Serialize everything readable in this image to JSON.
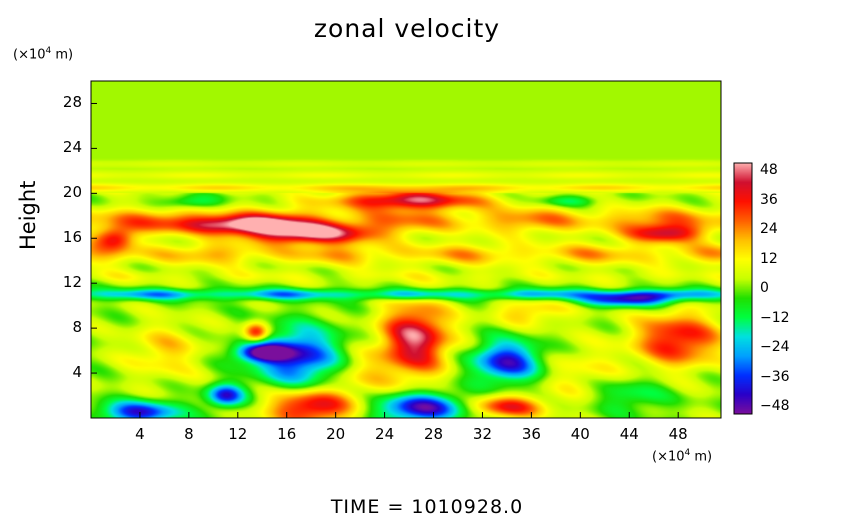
{
  "chart_data": {
    "type": "heatmap",
    "title": "zonal velocity",
    "xlabel": "",
    "x_unit_prefix": "(×10",
    "x_unit_exp": "4",
    "x_unit_suffix": " m)",
    "ylabel": "Height",
    "y_unit_prefix": "(×10",
    "y_unit_exp": "4",
    "y_unit_suffix": " m)",
    "xlim": [
      0,
      51.5
    ],
    "ylim": [
      0,
      30
    ],
    "xticks": [
      "4",
      "8",
      "12",
      "16",
      "20",
      "24",
      "28",
      "32",
      "36",
      "40",
      "44",
      "48"
    ],
    "yticks": [
      "4",
      "8",
      "12",
      "16",
      "20",
      "24",
      "28"
    ],
    "colorbar": {
      "range": [
        -48,
        48
      ],
      "ticks": [
        "48",
        "36",
        "24",
        "12",
        "0",
        "−12",
        "−24",
        "−36",
        "−48"
      ],
      "colors": [
        "#7a0f9c",
        "#2a00c8",
        "#0030ff",
        "#00a0ff",
        "#00e0e0",
        "#00ff40",
        "#20e000",
        "#c8ff00",
        "#ffff00",
        "#ffc000",
        "#ff6000",
        "#ff1000",
        "#d01030",
        "#ffb0b0"
      ]
    },
    "background_value": 2,
    "features": [
      {
        "kind": "band",
        "y": 11.0,
        "x_from": 0,
        "x_to": 51.5,
        "value": -28,
        "thickness": 0.5
      },
      {
        "kind": "band",
        "y": 12.6,
        "x_from": 0,
        "x_to": 51.5,
        "value": 6,
        "thickness": 0.6
      },
      {
        "kind": "band",
        "y": 14.6,
        "x_from": 0,
        "x_to": 51.5,
        "value": 18,
        "thickness": 1.0
      },
      {
        "kind": "band",
        "y": 17.6,
        "x_from": 0,
        "x_to": 51.5,
        "value": 22,
        "thickness": 1.2
      },
      {
        "kind": "band",
        "y": 20.5,
        "x_from": 0,
        "x_to": 51.5,
        "value": 14,
        "thickness": 0.4
      },
      {
        "kind": "band",
        "y": 21.6,
        "x_from": 0,
        "x_to": 51.5,
        "value": 8,
        "thickness": 0.4
      },
      {
        "kind": "band",
        "y": 22.6,
        "x_from": 0,
        "x_to": 51.5,
        "value": 5,
        "thickness": 0.3
      },
      {
        "kind": "blob",
        "x": 26,
        "y": 19.4,
        "rx": 6,
        "ry": 0.8,
        "value": 40
      },
      {
        "kind": "blob",
        "x": 18,
        "y": 16.4,
        "rx": 5,
        "ry": 0.9,
        "value": 44
      },
      {
        "kind": "blob",
        "x": 12,
        "y": 17.2,
        "rx": 5,
        "ry": 0.8,
        "value": 36
      },
      {
        "kind": "blob",
        "x": 2,
        "y": 16.0,
        "rx": 1.6,
        "ry": 1.0,
        "value": 30
      },
      {
        "kind": "blob",
        "x": 47,
        "y": 16.4,
        "rx": 3,
        "ry": 0.8,
        "value": 32
      },
      {
        "kind": "blob",
        "x": 26.5,
        "y": 7.0,
        "rx": 2.8,
        "ry": 3.2,
        "value": 42
      },
      {
        "kind": "blob",
        "x": 48,
        "y": 7.0,
        "rx": 3.5,
        "ry": 2.4,
        "value": 34
      },
      {
        "kind": "blob",
        "x": 17,
        "y": 5.4,
        "rx": 3.5,
        "ry": 2.6,
        "value": -40
      },
      {
        "kind": "blob",
        "x": 14,
        "y": 5.8,
        "rx": 2.2,
        "ry": 0.8,
        "value": -44
      },
      {
        "kind": "blob",
        "x": 34,
        "y": 5.0,
        "rx": 2.8,
        "ry": 1.8,
        "value": -42
      },
      {
        "kind": "blob",
        "x": 11,
        "y": 2.0,
        "rx": 1.5,
        "ry": 1.0,
        "value": -40
      },
      {
        "kind": "blob",
        "x": 27,
        "y": 0.9,
        "rx": 3.5,
        "ry": 1.3,
        "value": -46
      },
      {
        "kind": "blob",
        "x": 4,
        "y": 0.5,
        "rx": 3.2,
        "ry": 1.0,
        "value": -40
      },
      {
        "kind": "blob",
        "x": 18,
        "y": 1.0,
        "rx": 3.5,
        "ry": 1.6,
        "value": 38
      },
      {
        "kind": "blob",
        "x": 34,
        "y": 1.0,
        "rx": 3.0,
        "ry": 1.0,
        "value": 32
      },
      {
        "kind": "blob",
        "x": 13.5,
        "y": 7.6,
        "rx": 1.0,
        "ry": 0.9,
        "value": 36
      },
      {
        "kind": "blob",
        "x": 44,
        "y": 10.5,
        "rx": 4.0,
        "ry": 0.6,
        "value": -36
      },
      {
        "kind": "blob",
        "x": 8,
        "y": 19.2,
        "rx": 2.5,
        "ry": 0.6,
        "value": -16
      },
      {
        "kind": "blob",
        "x": 39,
        "y": 19.3,
        "rx": 2.5,
        "ry": 0.5,
        "value": -14
      },
      {
        "kind": "blob",
        "x": 6,
        "y": 6.0,
        "rx": 3.0,
        "ry": 2.5,
        "value": 14
      },
      {
        "kind": "blob",
        "x": 40,
        "y": 4.0,
        "rx": 3.5,
        "ry": 2.5,
        "value": 10
      },
      {
        "kind": "blob",
        "x": 22,
        "y": 4.0,
        "rx": 3.0,
        "ry": 2.0,
        "value": 12
      },
      {
        "kind": "blob",
        "x": 44,
        "y": 2.0,
        "rx": 3.0,
        "ry": 1.6,
        "value": -14
      },
      {
        "kind": "blob",
        "x": 36,
        "y": 9.5,
        "rx": 3.0,
        "ry": 1.2,
        "value": 16
      }
    ]
  },
  "footer": {
    "time_text": "TIME  =  1010928.0"
  }
}
